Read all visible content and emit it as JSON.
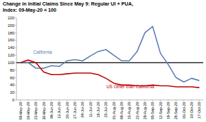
{
  "chart_data": {
    "type": "line",
    "title": "Change in Initial Claims Since May 9:  Regular UI + PUA,",
    "subtitle": "Index:  09-May-20 = 100",
    "categories": [
      "09-May-20",
      "16-May-20",
      "23-May-20",
      "30-May-20",
      "06-Jun-20",
      "13-Jun-20",
      "20-Jun-20",
      "27-Jun-20",
      "04-Jul-20",
      "11-Jul-20",
      "18-Jul-20",
      "25-Jul-20",
      "01-Aug-20",
      "08-Aug-20",
      "15-Aug-20",
      "22-Aug-20",
      "29-Aug-20",
      "05-Sep-20",
      "12-Sep-20",
      "19-Sep-20",
      "26-Sep-20",
      "03-Oct-20",
      "10-Oct-20",
      "17-Oct-20"
    ],
    "series": [
      {
        "name": "California",
        "color": "#5b7db4",
        "values": [
          100,
          100,
          85,
          85,
          92,
          90,
          105,
          108,
          105,
          118,
          130,
          135,
          120,
          105,
          105,
          130,
          180,
          197,
          125,
          95,
          60,
          48,
          58,
          52
        ]
      },
      {
        "name": "US Other than California",
        "color": "#c00000",
        "values": [
          100,
          107,
          100,
          75,
          68,
          68,
          70,
          72,
          72,
          72,
          68,
          58,
          45,
          40,
          40,
          38,
          38,
          40,
          38,
          38,
          35,
          35,
          35,
          33
        ]
      }
    ],
    "ylim": [
      0,
      220
    ],
    "yticks": [
      0,
      20,
      40,
      60,
      80,
      100,
      120,
      140,
      160,
      180,
      200,
      220
    ],
    "reference_line": 100,
    "grid": false
  }
}
